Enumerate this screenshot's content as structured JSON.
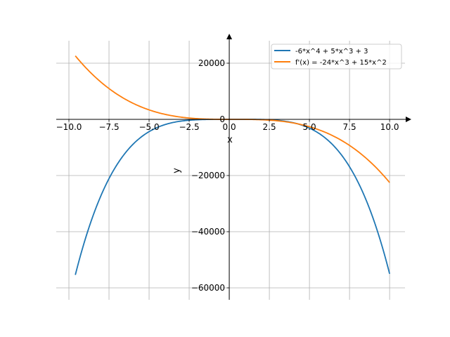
{
  "chart_data": {
    "type": "line",
    "title": "",
    "xlabel": "x",
    "ylabel": "y",
    "xlim": [
      -10.79,
      10.96
    ],
    "ylim": [
      -64250,
      28000
    ],
    "x_range": [
      -9.6,
      10
    ],
    "grid": true,
    "legend_position": "top-right",
    "xticks": [
      -10,
      -7.5,
      -5,
      -2.5,
      0,
      2.5,
      5,
      7.5,
      10
    ],
    "xtick_labels": [
      "−10.0",
      "−7.5",
      "−5.0",
      "−2.5",
      "0.0",
      "2.5",
      "5.0",
      "7.5",
      "10.0"
    ],
    "yticks": [
      20000,
      0,
      -20000,
      -40000,
      -60000
    ],
    "ytick_labels": [
      "20000",
      "0",
      "−20000",
      "−40000",
      "−60000"
    ],
    "series": [
      {
        "name": "-6*x^4 + 5*x^3 + 3",
        "color": "#1f77b4",
        "coeffs": [
          -6,
          5,
          0,
          0,
          3
        ]
      },
      {
        "name": "f'(x) = -24*x^3 + 15*x^2",
        "color": "#ff7f0e",
        "coeffs": [
          0,
          -24,
          15,
          0,
          0
        ]
      }
    ]
  }
}
